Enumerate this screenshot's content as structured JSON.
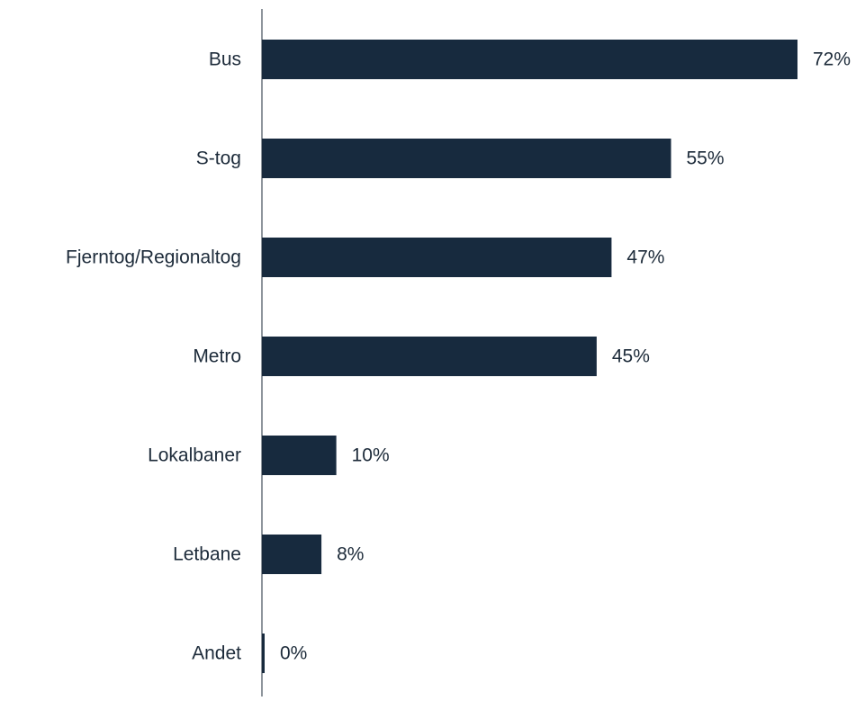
{
  "chart_data": {
    "type": "bar",
    "orientation": "horizontal",
    "categories": [
      "Bus",
      "S-tog",
      "Fjerntog/Regionaltog",
      "Metro",
      "Lokalbaner",
      "Letbane",
      "Andet"
    ],
    "values": [
      72,
      55,
      47,
      45,
      10,
      8,
      0
    ],
    "value_labels": [
      "72%",
      "55%",
      "47%",
      "45%",
      "10%",
      "8%",
      "0%"
    ],
    "unit": "%",
    "xlim": [
      0,
      72
    ],
    "grid": false,
    "legend": "none",
    "colors": {
      "bar": "#172a3e",
      "text": "#1d2b3a",
      "axis": "#1d2b3a"
    }
  }
}
